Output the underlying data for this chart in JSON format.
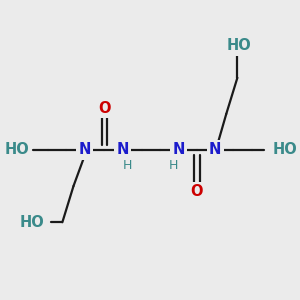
{
  "bg_color": "#ebebeb",
  "bond_color": "#1a1a1a",
  "N_color": "#1c1ccc",
  "O_color": "#cc0000",
  "HO_color": "#3a8a8a",
  "line_width": 1.6,
  "figsize": [
    3.0,
    3.0
  ],
  "dpi": 100,
  "xlim": [
    0.0,
    10.0
  ],
  "ylim": [
    -1.5,
    4.5
  ]
}
